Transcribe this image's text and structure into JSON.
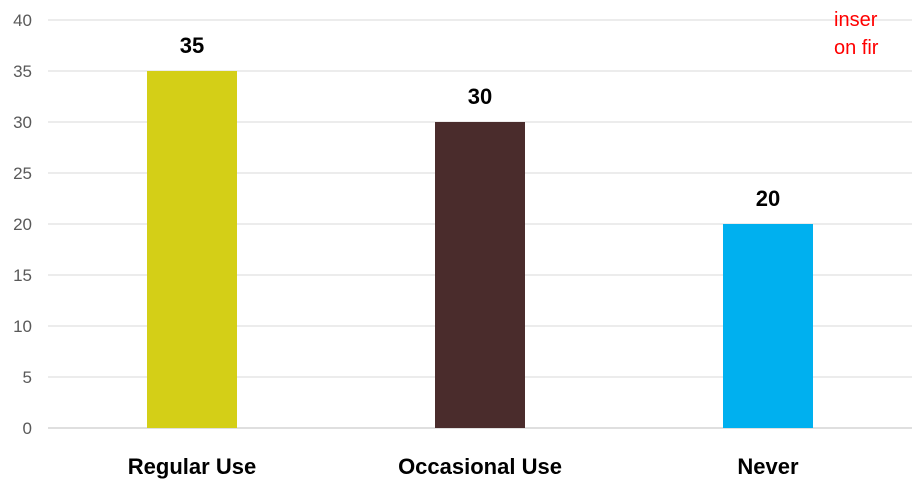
{
  "chart_data": {
    "type": "bar",
    "categories": [
      "Regular Use",
      "Occasional Use",
      "Never"
    ],
    "values": [
      35,
      30,
      20
    ],
    "data_labels": [
      "35",
      "30",
      "20"
    ],
    "ylim": [
      0,
      40
    ],
    "yticks": [
      0,
      5,
      10,
      15,
      20,
      25,
      30,
      35,
      40
    ],
    "grid": true,
    "legend": "none",
    "bar_colors": [
      "#d4cf17",
      "#4a2c2c",
      "#00b0ef"
    ],
    "title": "",
    "xlabel": "",
    "ylabel": ""
  },
  "overlay_note": {
    "line1": "inser",
    "line2": "on fir",
    "color": "#ff0000"
  }
}
